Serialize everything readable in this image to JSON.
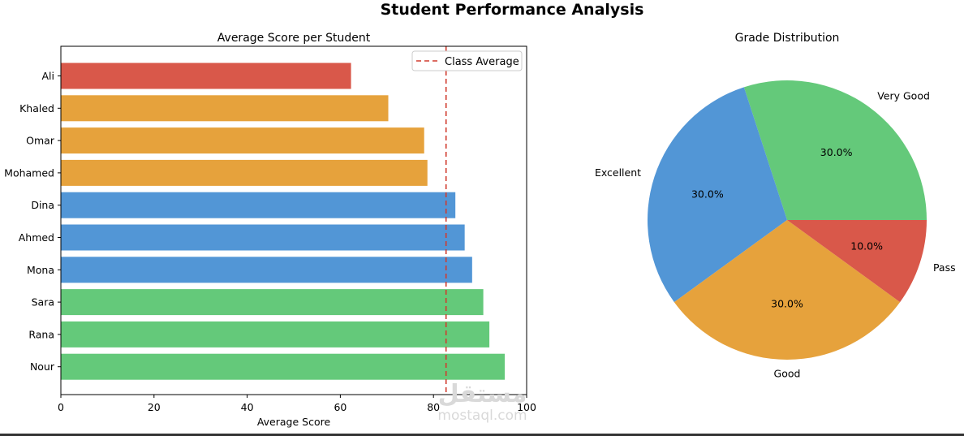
{
  "figure": {
    "title": "Student Performance Analysis",
    "watermark_logo": "مستقل",
    "watermark_site": "mostaql.com"
  },
  "chart_data": [
    {
      "type": "bar",
      "orientation": "horizontal",
      "title": "Average Score per Student",
      "xlabel": "Average Score",
      "ylabel": "",
      "xlim": [
        0,
        100
      ],
      "xticks": [
        0,
        20,
        40,
        60,
        80,
        100
      ],
      "categories": [
        "Ali",
        "Khaled",
        "Omar",
        "Mohamed",
        "Dina",
        "Ahmed",
        "Mona",
        "Sara",
        "Rana",
        "Nour"
      ],
      "values": [
        62.3,
        70.3,
        78,
        78.7,
        84.7,
        86.7,
        88.3,
        90.7,
        92,
        95.3
      ],
      "bar_colors": [
        "#d9584a",
        "#e6a23c",
        "#e6a23c",
        "#e6a23c",
        "#5296d6",
        "#5296d6",
        "#5296d6",
        "#64c97a",
        "#64c97a",
        "#64c97a"
      ],
      "reference_line": {
        "label": "Class Average",
        "value": 82.7,
        "color": "#d03b2e",
        "style": "dashed"
      },
      "legend": {
        "placement": "upper-right",
        "entries": [
          "Class Average"
        ]
      },
      "grid": false
    },
    {
      "type": "pie",
      "title": "Grade Distribution",
      "labels": [
        "Very Good",
        "Excellent",
        "Good",
        "Pass"
      ],
      "values": [
        30,
        30,
        30,
        10
      ],
      "pct_labels": [
        "30.0%",
        "30.0%",
        "30.0%",
        "10.0%"
      ],
      "colors": [
        "#64c97a",
        "#5296d6",
        "#e6a23c",
        "#d9584a"
      ],
      "start_angle_deg": 0,
      "direction": "counterclockwise"
    }
  ]
}
